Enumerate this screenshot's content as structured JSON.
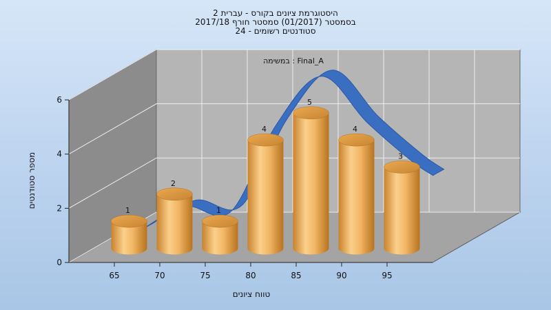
{
  "title_lines": [
    "היסטוגרמת ציונים בקורס - עברית 2",
    "בסמסטר  (01/2017)  סמסטר חורף 2017/18",
    "סטודנטים רשומים - 24"
  ],
  "chart_data": {
    "type": "bar",
    "annotation": "במשימה : Final_A",
    "xlabel": "טווח ציונים",
    "ylabel": "מספר סטודנטים",
    "ylim": [
      0,
      6
    ],
    "yticks": [
      0,
      2,
      4,
      6
    ],
    "xticks": [
      "65",
      "70",
      "75",
      "80",
      "85",
      "90",
      "95"
    ],
    "values": [
      1,
      2,
      1,
      4,
      5,
      4,
      3
    ],
    "data_labels": [
      "1",
      "2",
      "1",
      "4",
      "5",
      "4",
      "3"
    ],
    "curve": [
      0.15,
      1.05,
      0.85,
      4.05,
      5.85,
      4.15,
      2.7
    ],
    "colors": {
      "bar": "#e1a043",
      "curve": "#3a6ec0",
      "back_wall": "#b5b5b5",
      "side_wall": "#8c8c8c",
      "floor": "#a4a4a4"
    }
  }
}
